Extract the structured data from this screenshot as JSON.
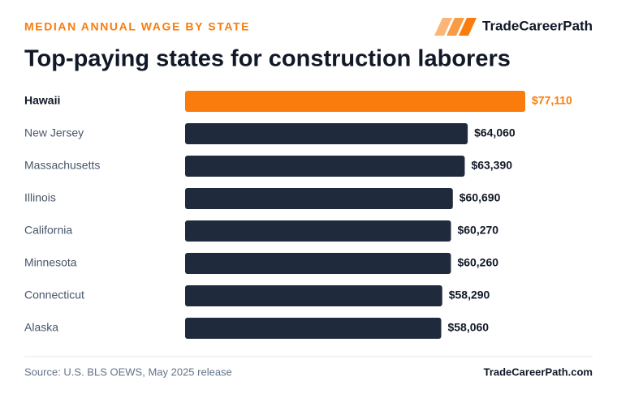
{
  "chart_data": {
    "type": "bar",
    "orientation": "horizontal",
    "eyebrow": "MEDIAN ANNUAL WAGE BY STATE",
    "title": "Top-paying states for construction laborers",
    "brand": "TradeCareerPath",
    "source": "Source: U.S. BLS OEWS, May 2025 release",
    "footer_brand": "TradeCareerPath.com",
    "categories": [
      "Hawaii",
      "New Jersey",
      "Massachusetts",
      "Illinois",
      "California",
      "Minnesota",
      "Connecticut",
      "Alaska"
    ],
    "values": [
      77110,
      64060,
      63390,
      60690,
      60270,
      60260,
      58290,
      58060
    ],
    "value_labels": [
      "$77,110",
      "$64,060",
      "$63,390",
      "$60,690",
      "$60,270",
      "$60,260",
      "$58,290",
      "$58,060"
    ],
    "color": "#1f2a3c",
    "colors": [
      "#f97c0c",
      "#1f2a3c",
      "#1f2a3c",
      "#1f2a3c",
      "#1f2a3c",
      "#1f2a3c",
      "#1f2a3c",
      "#1f2a3c"
    ]
  }
}
